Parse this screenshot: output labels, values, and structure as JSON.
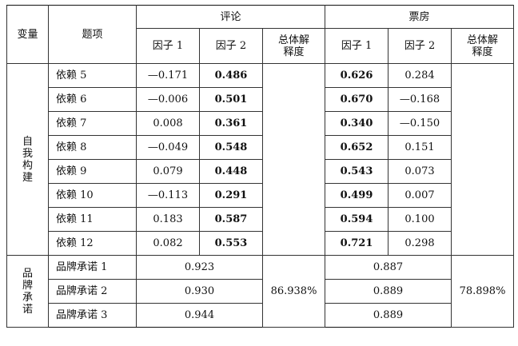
{
  "header": {
    "var": "变量",
    "item": "题项",
    "group_review": "评论",
    "group_box": "票房",
    "factor1": "因子 1",
    "factor2": "因子 2",
    "total_line1": "总体解",
    "total_line2": "释度"
  },
  "self_group_chars": [
    "自",
    "我",
    "构",
    "建"
  ],
  "brand_group_chars": [
    "品",
    "牌",
    "承",
    "诺"
  ],
  "self_rows": [
    {
      "item": "依赖 5",
      "r1": "—0.171",
      "r2": "0.486",
      "b1": "0.626",
      "b2": "0.284"
    },
    {
      "item": "依赖 6",
      "r1": "—0.006",
      "r2": "0.501",
      "b1": "0.670",
      "b2": "—0.168"
    },
    {
      "item": "依赖 7",
      "r1": "0.008",
      "r2": "0.361",
      "b1": "0.340",
      "b2": "—0.150"
    },
    {
      "item": "依赖 8",
      "r1": "—0.049",
      "r2": "0.548",
      "b1": "0.652",
      "b2": "0.151"
    },
    {
      "item": "依赖 9",
      "r1": "0.079",
      "r2": "0.448",
      "b1": "0.543",
      "b2": "0.073"
    },
    {
      "item": "依赖 10",
      "r1": "—0.113",
      "r2": "0.291",
      "b1": "0.499",
      "b2": "0.007"
    },
    {
      "item": "依赖 11",
      "r1": "0.183",
      "r2": "0.587",
      "b1": "0.594",
      "b2": "0.100"
    },
    {
      "item": "依赖 12",
      "r1": "0.082",
      "r2": "0.553",
      "b1": "0.721",
      "b2": "0.298"
    }
  ],
  "brand_rows": [
    {
      "item": "品牌承诺 1",
      "review": "0.923",
      "box": "0.887"
    },
    {
      "item": "品牌承诺 2",
      "review": "0.930",
      "box": "0.889"
    },
    {
      "item": "品牌承诺 3",
      "review": "0.944",
      "box": "0.889"
    }
  ],
  "total_review": "86.938%",
  "total_box": "78.898%"
}
